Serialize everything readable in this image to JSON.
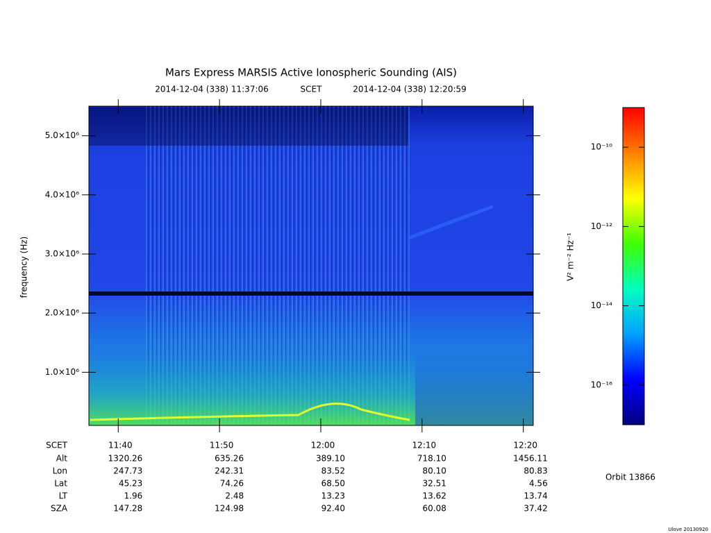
{
  "chart_data": {
    "type": "spectrogram",
    "title": "Mars Express MARSIS Active Ionospheric Sounding (AIS)",
    "start_time": "2014-12-04 (338) 11:37:06",
    "time_label": "SCET",
    "end_time": "2014-12-04 (338) 12:20:59",
    "y_label": "frequency (Hz)",
    "ylim": [
      100000,
      5500000
    ],
    "yticks": [
      {
        "value": 1000000,
        "label": "1.0×10⁶"
      },
      {
        "value": 2000000,
        "label": "2.0×10⁶"
      },
      {
        "value": 3000000,
        "label": "3.0×10⁶"
      },
      {
        "value": 4000000,
        "label": "4.0×10⁶"
      },
      {
        "value": 5000000,
        "label": "5.0×10⁶"
      }
    ],
    "xlim": [
      697.1,
      740.98
    ],
    "xticks": [
      {
        "value": 700,
        "label": "11:40"
      },
      {
        "value": 710,
        "label": "11:50"
      },
      {
        "value": 720,
        "label": "12:00"
      },
      {
        "value": 730,
        "label": "12:10"
      },
      {
        "value": 740,
        "label": "12:20"
      }
    ],
    "colorbar": {
      "label": "V² m⁻² Hz⁻¹",
      "log": true,
      "lim": [
        1e-17,
        1e-09
      ],
      "ticks": [
        {
          "value": 1e-10,
          "label": "10⁻¹⁰"
        },
        {
          "value": 1e-12,
          "label": "10⁻¹²"
        },
        {
          "value": 1e-14,
          "label": "10⁻¹⁴"
        },
        {
          "value": 1e-16,
          "label": "10⁻¹⁶"
        }
      ],
      "colors": [
        "#000080",
        "#0000ff",
        "#00a0ff",
        "#00ffc0",
        "#40ff00",
        "#ffff00",
        "#ff8000",
        "#ff0000"
      ]
    },
    "ephemeris": {
      "x_label": "SCET",
      "labels": [
        "Alt",
        "Lon",
        "Lat",
        "LT",
        "SZA"
      ],
      "rows": [
        [
          "1320.26",
          "635.26",
          "389.10",
          "718.10",
          "1456.11"
        ],
        [
          "247.73",
          "242.31",
          "83.52",
          "80.10",
          "80.83"
        ],
        [
          "45.23",
          "74.26",
          "68.50",
          "32.51",
          "4.56"
        ],
        [
          "1.96",
          "2.48",
          "13.23",
          "13.62",
          "13.74"
        ],
        [
          "147.28",
          "124.98",
          "92.40",
          "60.08",
          "37.42"
        ]
      ]
    },
    "orbit": "Orbit 13866",
    "credit": "Ulove 20130920"
  }
}
